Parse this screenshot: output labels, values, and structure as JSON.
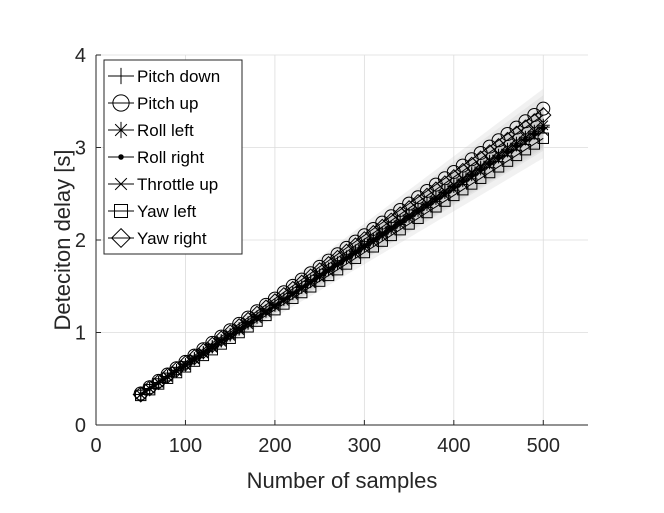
{
  "chart_data": {
    "type": "line",
    "title": "",
    "xlabel": "Number of samples",
    "ylabel": "Deteciton delay [s]",
    "xlim": [
      0,
      550
    ],
    "ylim": [
      0,
      4
    ],
    "xticks": [
      0,
      100,
      200,
      300,
      400,
      500
    ],
    "yticks": [
      0,
      1,
      2,
      3,
      4
    ],
    "grid": true,
    "legend_position": "top-left",
    "x": [
      50,
      500
    ],
    "x_step": 10,
    "confidence_band": true,
    "band_color": "#bdbdbd",
    "series": [
      {
        "name": "Pitch down",
        "marker": "plus",
        "y_start": 0.33,
        "y_end": 3.22
      },
      {
        "name": "Pitch up",
        "marker": "circle",
        "y_start": 0.34,
        "y_end": 3.42
      },
      {
        "name": "Roll left",
        "marker": "asterisk",
        "y_start": 0.33,
        "y_end": 3.24
      },
      {
        "name": "Roll right",
        "marker": "dot",
        "y_start": 0.33,
        "y_end": 3.2
      },
      {
        "name": "Throttle up",
        "marker": "cross",
        "y_start": 0.33,
        "y_end": 3.18
      },
      {
        "name": "Yaw left",
        "marker": "square",
        "y_start": 0.32,
        "y_end": 3.1
      },
      {
        "name": "Yaw right",
        "marker": "diamond",
        "y_start": 0.33,
        "y_end": 3.35
      }
    ]
  }
}
